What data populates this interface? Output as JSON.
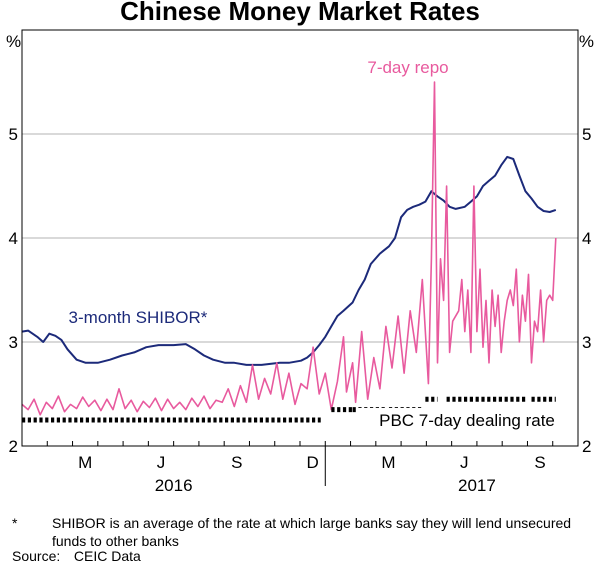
{
  "chart_data": {
    "type": "line",
    "title": "Chinese Money Market Rates",
    "y_unit_left": "%",
    "y_unit_right": "%",
    "ylim": [
      2,
      6
    ],
    "yticks": [
      2,
      3,
      4,
      5
    ],
    "x_start": 2016.0,
    "x_end": 2017.8333,
    "month_ticks": [
      {
        "label": "M",
        "x": 2016.2083
      },
      {
        "label": "J",
        "x": 2016.4583
      },
      {
        "label": "S",
        "x": 2016.7083
      },
      {
        "label": "D",
        "x": 2016.9583
      },
      {
        "label": "M",
        "x": 2017.2083
      },
      {
        "label": "J",
        "x": 2017.4583
      },
      {
        "label": "S",
        "x": 2017.7083
      }
    ],
    "year_labels": [
      {
        "label": "2016",
        "x": 2016.5
      },
      {
        "label": "2017",
        "x": 2017.5
      }
    ],
    "series": [
      {
        "name": "3-month SHIBOR*",
        "color": "#1c2a7a",
        "points": [
          [
            2016.0,
            3.1
          ],
          [
            2016.02,
            3.11
          ],
          [
            2016.05,
            3.05
          ],
          [
            2016.07,
            3.0
          ],
          [
            2016.09,
            3.08
          ],
          [
            2016.11,
            3.06
          ],
          [
            2016.13,
            3.02
          ],
          [
            2016.15,
            2.93
          ],
          [
            2016.18,
            2.83
          ],
          [
            2016.21,
            2.8
          ],
          [
            2016.25,
            2.8
          ],
          [
            2016.29,
            2.83
          ],
          [
            2016.33,
            2.87
          ],
          [
            2016.37,
            2.9
          ],
          [
            2016.41,
            2.95
          ],
          [
            2016.45,
            2.97
          ],
          [
            2016.5,
            2.97
          ],
          [
            2016.54,
            2.98
          ],
          [
            2016.57,
            2.93
          ],
          [
            2016.6,
            2.87
          ],
          [
            2016.63,
            2.83
          ],
          [
            2016.67,
            2.8
          ],
          [
            2016.7,
            2.8
          ],
          [
            2016.74,
            2.78
          ],
          [
            2016.79,
            2.78
          ],
          [
            2016.85,
            2.8
          ],
          [
            2016.88,
            2.8
          ],
          [
            2016.92,
            2.82
          ],
          [
            2016.94,
            2.85
          ],
          [
            2016.96,
            2.9
          ],
          [
            2016.98,
            2.97
          ],
          [
            2017.0,
            3.05
          ],
          [
            2017.02,
            3.15
          ],
          [
            2017.04,
            3.25
          ],
          [
            2017.06,
            3.3
          ],
          [
            2017.09,
            3.38
          ],
          [
            2017.11,
            3.5
          ],
          [
            2017.13,
            3.6
          ],
          [
            2017.15,
            3.75
          ],
          [
            2017.18,
            3.85
          ],
          [
            2017.21,
            3.92
          ],
          [
            2017.23,
            4.0
          ],
          [
            2017.25,
            4.2
          ],
          [
            2017.27,
            4.27
          ],
          [
            2017.29,
            4.3
          ],
          [
            2017.31,
            4.32
          ],
          [
            2017.33,
            4.35
          ],
          [
            2017.35,
            4.45
          ],
          [
            2017.37,
            4.4
          ],
          [
            2017.39,
            4.36
          ],
          [
            2017.41,
            4.3
          ],
          [
            2017.43,
            4.28
          ],
          [
            2017.46,
            4.3
          ],
          [
            2017.48,
            4.35
          ],
          [
            2017.5,
            4.4
          ],
          [
            2017.52,
            4.5
          ],
          [
            2017.54,
            4.55
          ],
          [
            2017.56,
            4.6
          ],
          [
            2017.58,
            4.7
          ],
          [
            2017.6,
            4.78
          ],
          [
            2017.62,
            4.76
          ],
          [
            2017.64,
            4.6
          ],
          [
            2017.66,
            4.45
          ],
          [
            2017.68,
            4.38
          ],
          [
            2017.7,
            4.3
          ],
          [
            2017.72,
            4.26
          ],
          [
            2017.74,
            4.25
          ],
          [
            2017.76,
            4.27
          ]
        ]
      },
      {
        "name": "7-day repo",
        "color": "#e85a9e",
        "points": [
          [
            2016.0,
            2.4
          ],
          [
            2016.02,
            2.35
          ],
          [
            2016.04,
            2.45
          ],
          [
            2016.06,
            2.3
          ],
          [
            2016.08,
            2.42
          ],
          [
            2016.1,
            2.36
          ],
          [
            2016.12,
            2.48
          ],
          [
            2016.14,
            2.33
          ],
          [
            2016.16,
            2.4
          ],
          [
            2016.18,
            2.36
          ],
          [
            2016.2,
            2.47
          ],
          [
            2016.22,
            2.38
          ],
          [
            2016.24,
            2.44
          ],
          [
            2016.26,
            2.34
          ],
          [
            2016.28,
            2.45
          ],
          [
            2016.3,
            2.35
          ],
          [
            2016.32,
            2.55
          ],
          [
            2016.34,
            2.36
          ],
          [
            2016.36,
            2.44
          ],
          [
            2016.38,
            2.33
          ],
          [
            2016.4,
            2.43
          ],
          [
            2016.42,
            2.37
          ],
          [
            2016.44,
            2.46
          ],
          [
            2016.46,
            2.34
          ],
          [
            2016.48,
            2.45
          ],
          [
            2016.5,
            2.36
          ],
          [
            2016.52,
            2.42
          ],
          [
            2016.54,
            2.35
          ],
          [
            2016.56,
            2.46
          ],
          [
            2016.58,
            2.38
          ],
          [
            2016.6,
            2.48
          ],
          [
            2016.62,
            2.36
          ],
          [
            2016.64,
            2.44
          ],
          [
            2016.66,
            2.42
          ],
          [
            2016.68,
            2.55
          ],
          [
            2016.7,
            2.38
          ],
          [
            2016.72,
            2.58
          ],
          [
            2016.74,
            2.42
          ],
          [
            2016.76,
            2.78
          ],
          [
            2016.78,
            2.45
          ],
          [
            2016.8,
            2.65
          ],
          [
            2016.82,
            2.5
          ],
          [
            2016.84,
            2.8
          ],
          [
            2016.86,
            2.45
          ],
          [
            2016.88,
            2.7
          ],
          [
            2016.9,
            2.4
          ],
          [
            2016.92,
            2.6
          ],
          [
            2016.94,
            2.55
          ],
          [
            2016.96,
            2.95
          ],
          [
            2016.98,
            2.5
          ],
          [
            2017.0,
            2.7
          ],
          [
            2017.02,
            2.35
          ],
          [
            2017.04,
            2.62
          ],
          [
            2017.06,
            3.05
          ],
          [
            2017.07,
            2.52
          ],
          [
            2017.09,
            2.8
          ],
          [
            2017.1,
            2.42
          ],
          [
            2017.12,
            3.1
          ],
          [
            2017.14,
            2.45
          ],
          [
            2017.16,
            2.85
          ],
          [
            2017.18,
            2.55
          ],
          [
            2017.2,
            3.15
          ],
          [
            2017.22,
            2.75
          ],
          [
            2017.24,
            3.25
          ],
          [
            2017.26,
            2.7
          ],
          [
            2017.28,
            3.3
          ],
          [
            2017.3,
            2.9
          ],
          [
            2017.32,
            3.6
          ],
          [
            2017.34,
            2.6
          ],
          [
            2017.35,
            3.8
          ],
          [
            2017.36,
            5.5
          ],
          [
            2017.37,
            2.8
          ],
          [
            2017.38,
            3.8
          ],
          [
            2017.39,
            3.4
          ],
          [
            2017.4,
            4.5
          ],
          [
            2017.41,
            2.9
          ],
          [
            2017.42,
            3.2
          ],
          [
            2017.44,
            3.3
          ],
          [
            2017.45,
            3.6
          ],
          [
            2017.46,
            3.1
          ],
          [
            2017.47,
            3.5
          ],
          [
            2017.48,
            2.9
          ],
          [
            2017.49,
            4.5
          ],
          [
            2017.5,
            3.1
          ],
          [
            2017.51,
            3.7
          ],
          [
            2017.52,
            2.95
          ],
          [
            2017.53,
            3.4
          ],
          [
            2017.54,
            2.8
          ],
          [
            2017.55,
            3.5
          ],
          [
            2017.56,
            3.15
          ],
          [
            2017.57,
            3.45
          ],
          [
            2017.58,
            2.9
          ],
          [
            2017.59,
            3.2
          ],
          [
            2017.6,
            3.4
          ],
          [
            2017.61,
            3.5
          ],
          [
            2017.62,
            3.35
          ],
          [
            2017.63,
            3.7
          ],
          [
            2017.64,
            3.0
          ],
          [
            2017.65,
            3.45
          ],
          [
            2017.66,
            3.2
          ],
          [
            2017.67,
            3.65
          ],
          [
            2017.68,
            2.8
          ],
          [
            2017.69,
            3.2
          ],
          [
            2017.7,
            3.1
          ],
          [
            2017.71,
            3.5
          ],
          [
            2017.72,
            3.0
          ],
          [
            2017.73,
            3.4
          ],
          [
            2017.74,
            3.45
          ],
          [
            2017.75,
            3.4
          ],
          [
            2017.76,
            4.0
          ]
        ]
      },
      {
        "name": "PBC 7-day dealing rate",
        "color": "#000000",
        "style": "dotted",
        "segments": [
          {
            "x0": 2016.0,
            "x1": 2016.985,
            "y": 2.25
          },
          {
            "x0": 2017.02,
            "x1": 2017.09,
            "y": 2.35
          },
          {
            "x0": 2017.09,
            "x1": 2017.2,
            "y": 2.35
          },
          {
            "x0": 2017.21,
            "x1": 2017.32,
            "y": 2.35
          },
          {
            "x0": 2017.33,
            "x1": 2017.37,
            "y": 2.45
          },
          {
            "x0": 2017.4,
            "x1": 2017.66,
            "y": 2.45
          },
          {
            "x0": 2017.68,
            "x1": 2017.76,
            "y": 2.45
          }
        ]
      }
    ],
    "labels": {
      "shibor": "3-month SHIBOR*",
      "repo": "7-day repo",
      "pbc": "PBC 7-day dealing rate"
    }
  },
  "footnote": {
    "mark": "*",
    "text": "SHIBOR is an average of the rate at which large banks say they will lend unsecured funds to other banks"
  },
  "source": {
    "label": "Source:",
    "value": "CEIC Data"
  }
}
